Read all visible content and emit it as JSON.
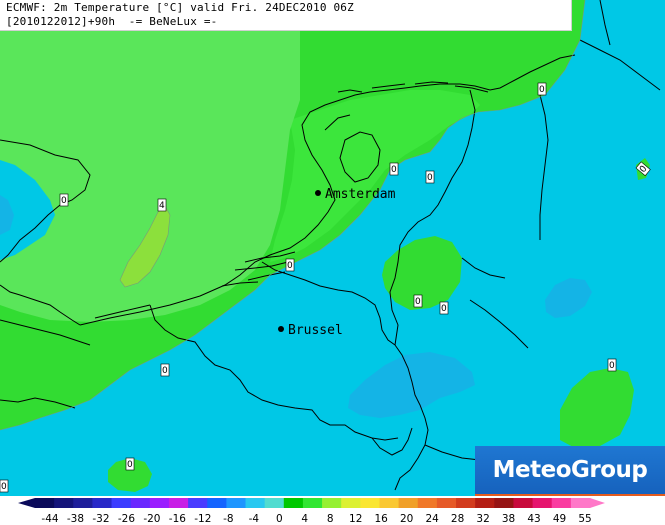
{
  "title": {
    "line1": "ECMWF: 2m Temperature [°C] valid Fri. 24DEC2010 06Z",
    "line2": "[2010122012]+90h  -= BeNeLux =-"
  },
  "brand": {
    "name": "MeteoGroup"
  },
  "cities": [
    {
      "name": "Amsterdam"
    },
    {
      "name": "Brussel"
    }
  ],
  "contour_labels": [
    "0",
    "0",
    "0",
    "0",
    "0",
    "0",
    "0",
    "0",
    "0",
    "0",
    "0",
    "4",
    "0"
  ],
  "colorbar": {
    "ticks": [
      "-44",
      "-38",
      "-32",
      "-26",
      "-20",
      "-16",
      "-12",
      "-8",
      "-4",
      "0",
      "4",
      "8",
      "12",
      "16",
      "20",
      "24",
      "28",
      "32",
      "38",
      "43",
      "49",
      "55"
    ],
    "colors": [
      "#0a0a5a",
      "#14147a",
      "#1e1e9a",
      "#2828c8",
      "#3c3cff",
      "#6a28ff",
      "#9a1eff",
      "#c81ee6",
      "#4a3cff",
      "#1464ff",
      "#1e96ff",
      "#28c8f0",
      "#50dcd0",
      "#00c800",
      "#32e632",
      "#96f032",
      "#dcf032",
      "#fae632",
      "#fac832",
      "#f0a028",
      "#f07828",
      "#e65a28",
      "#d23c1e",
      "#b41e14",
      "#961414",
      "#c80a3c",
      "#e6146e",
      "#fa3ca0",
      "#ff78c8"
    ]
  },
  "colors": {
    "sea": "#00c8e6",
    "land_cold": "#00c8e6",
    "land_warm": "#32dc32",
    "land_warmer": "#50e650",
    "zone_4": "#8ce03c",
    "cold_patch": "#14aadc",
    "border": "#000000"
  }
}
